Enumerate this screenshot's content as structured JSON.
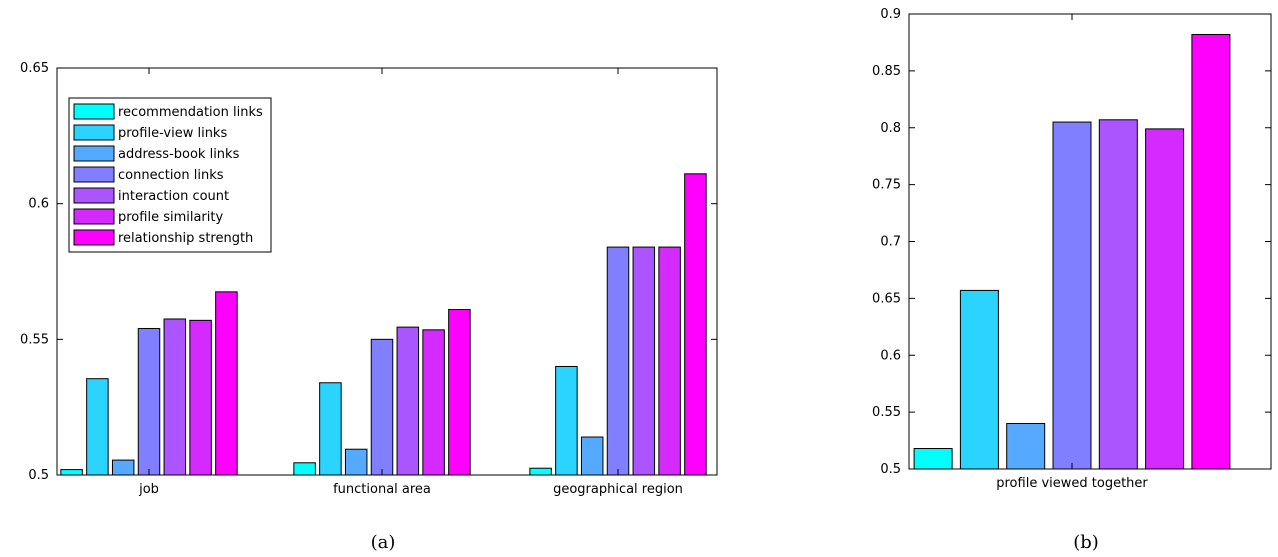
{
  "chart_data": [
    {
      "type": "bar",
      "caption": "(a)",
      "categories": [
        "job",
        "functional area",
        "geographical region"
      ],
      "ylim": [
        0.5,
        0.65
      ],
      "yticks": [
        "0.5",
        "0.55",
        "0.6",
        "0.65"
      ],
      "legend": {
        "placement": "top-left",
        "show": true
      },
      "series": [
        {
          "name": "recommendation links",
          "color": "#00FFFF",
          "values": [
            0.502,
            0.5045,
            0.5025
          ]
        },
        {
          "name": "profile-view links",
          "color": "#2AD4FF",
          "values": [
            0.5355,
            0.534,
            0.54
          ]
        },
        {
          "name": "address-book links",
          "color": "#55AAFF",
          "values": [
            0.5055,
            0.5095,
            0.514
          ]
        },
        {
          "name": "connection links",
          "color": "#7F7FFF",
          "values": [
            0.554,
            0.55,
            0.584
          ]
        },
        {
          "name": "interaction count",
          "color": "#AA55FF",
          "values": [
            0.5575,
            0.5545,
            0.584
          ]
        },
        {
          "name": "profile similarity",
          "color": "#D42AFF",
          "values": [
            0.557,
            0.5535,
            0.584
          ]
        },
        {
          "name": "relationship strength",
          "color": "#FF00FF",
          "values": [
            0.5675,
            0.561,
            0.611
          ]
        }
      ]
    },
    {
      "type": "bar",
      "caption": "(b)",
      "categories": [
        "profile viewed together"
      ],
      "ylim": [
        0.5,
        0.9
      ],
      "yticks": [
        "0.5",
        "0.55",
        "0.6",
        "0.65",
        "0.7",
        "0.75",
        "0.8",
        "0.85",
        "0.9"
      ],
      "legend": {
        "show": false
      },
      "series": [
        {
          "name": "recommendation links",
          "color": "#00FFFF",
          "values": [
            0.518
          ]
        },
        {
          "name": "profile-view links",
          "color": "#2AD4FF",
          "values": [
            0.657
          ]
        },
        {
          "name": "address-book links",
          "color": "#55AAFF",
          "values": [
            0.54
          ]
        },
        {
          "name": "connection links",
          "color": "#7F7FFF",
          "values": [
            0.805
          ]
        },
        {
          "name": "interaction count",
          "color": "#AA55FF",
          "values": [
            0.807
          ]
        },
        {
          "name": "profile similarity",
          "color": "#D42AFF",
          "values": [
            0.799
          ]
        },
        {
          "name": "relationship strength",
          "color": "#FF00FF",
          "values": [
            0.882
          ]
        }
      ]
    }
  ]
}
